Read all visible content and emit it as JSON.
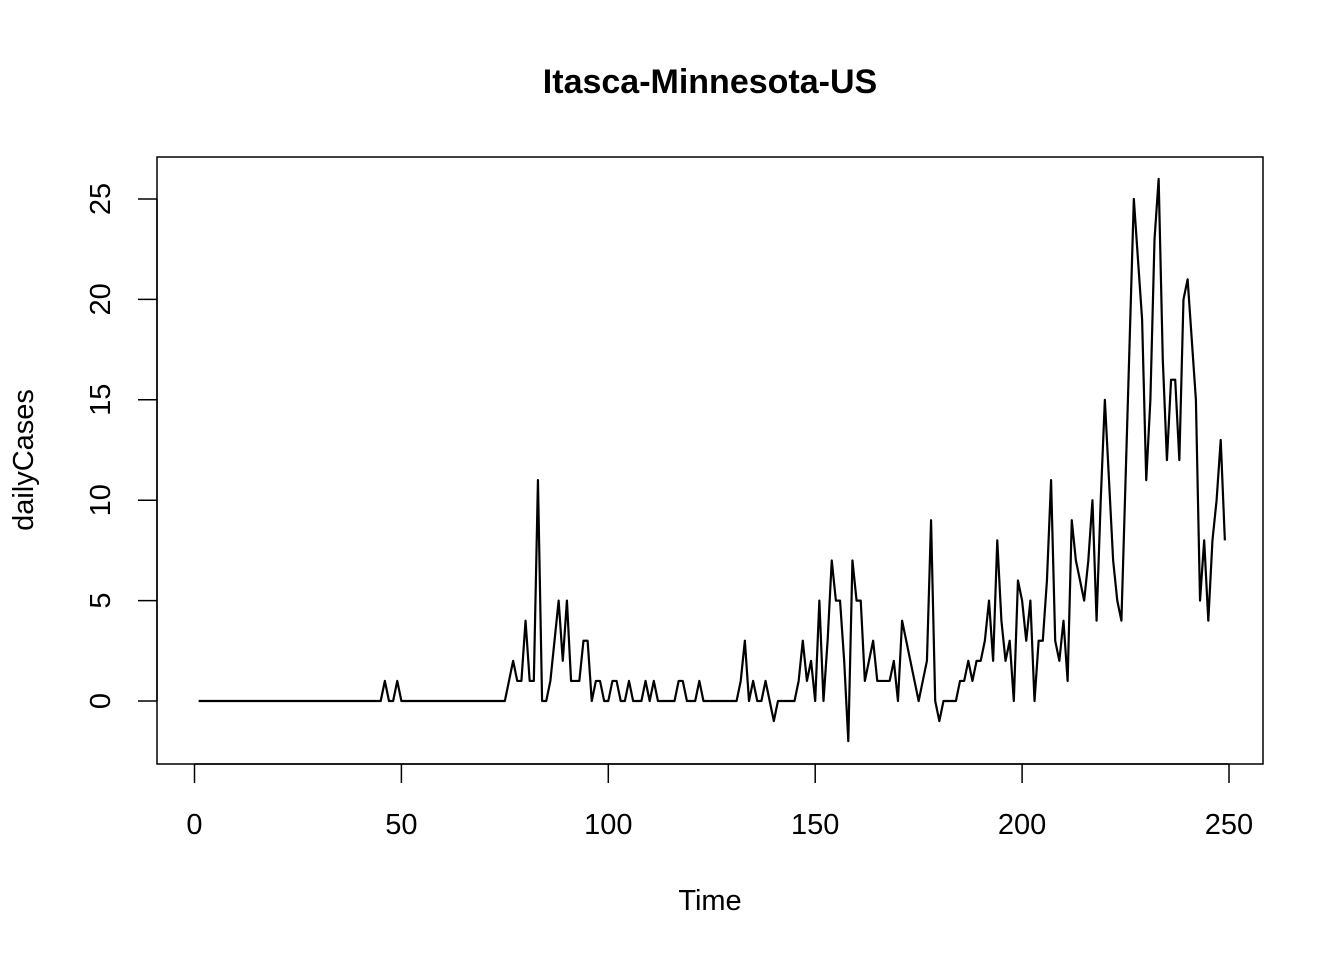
{
  "chart_data": {
    "type": "line",
    "title": "Itasca-Minnesota-US",
    "xlabel": "Time",
    "ylabel": "dailyCases",
    "xlim": [
      0,
      250
    ],
    "ylim": [
      -2,
      26
    ],
    "xticks": [
      0,
      50,
      100,
      150,
      200,
      250
    ],
    "yticks": [
      0,
      5,
      10,
      15,
      20,
      25
    ],
    "grid": false,
    "series": [
      {
        "values": [
          0,
          0,
          0,
          0,
          0,
          0,
          0,
          0,
          0,
          0,
          0,
          0,
          0,
          0,
          0,
          0,
          0,
          0,
          0,
          0,
          0,
          0,
          0,
          0,
          0,
          0,
          0,
          0,
          0,
          0,
          0,
          0,
          0,
          0,
          0,
          0,
          0,
          0,
          0,
          0,
          0,
          0,
          0,
          0,
          0,
          1,
          0,
          0,
          1,
          0,
          0,
          0,
          0,
          0,
          0,
          0,
          0,
          0,
          0,
          0,
          0,
          0,
          0,
          0,
          0,
          0,
          0,
          0,
          0,
          0,
          0,
          0,
          0,
          0,
          0,
          1,
          2,
          1,
          1,
          4,
          1,
          1,
          11,
          0,
          0,
          1,
          3,
          5,
          2,
          5,
          1,
          1,
          1,
          3,
          3,
          0,
          1,
          1,
          0,
          0,
          1,
          1,
          0,
          0,
          1,
          0,
          0,
          0,
          1,
          0,
          1,
          0,
          0,
          0,
          0,
          0,
          1,
          1,
          0,
          0,
          0,
          1,
          0,
          0,
          0,
          0,
          0,
          0,
          0,
          0,
          0,
          1,
          3,
          0,
          1,
          0,
          0,
          1,
          0,
          -1,
          0,
          0,
          0,
          0,
          0,
          1,
          3,
          1,
          2,
          0,
          5,
          0,
          3,
          7,
          5,
          5,
          2,
          -2,
          7,
          5,
          5,
          1,
          2,
          3,
          1,
          1,
          1,
          1,
          2,
          0,
          4,
          3,
          2,
          1,
          0,
          1,
          2,
          9,
          0,
          -1,
          0,
          0,
          0,
          0,
          1,
          1,
          2,
          1,
          2,
          2,
          3,
          5,
          2,
          8,
          4,
          2,
          3,
          0,
          6,
          5,
          3,
          5,
          0,
          3,
          3,
          6,
          11,
          3,
          2,
          4,
          1,
          9,
          7,
          6,
          5,
          7,
          10,
          4,
          10,
          15,
          11,
          7,
          5,
          4,
          11,
          18,
          25,
          22,
          19,
          11,
          15,
          23,
          26,
          17,
          12,
          16,
          16,
          12,
          20,
          21,
          18,
          15,
          5,
          8,
          4,
          8,
          10,
          13,
          8
        ]
      }
    ]
  }
}
